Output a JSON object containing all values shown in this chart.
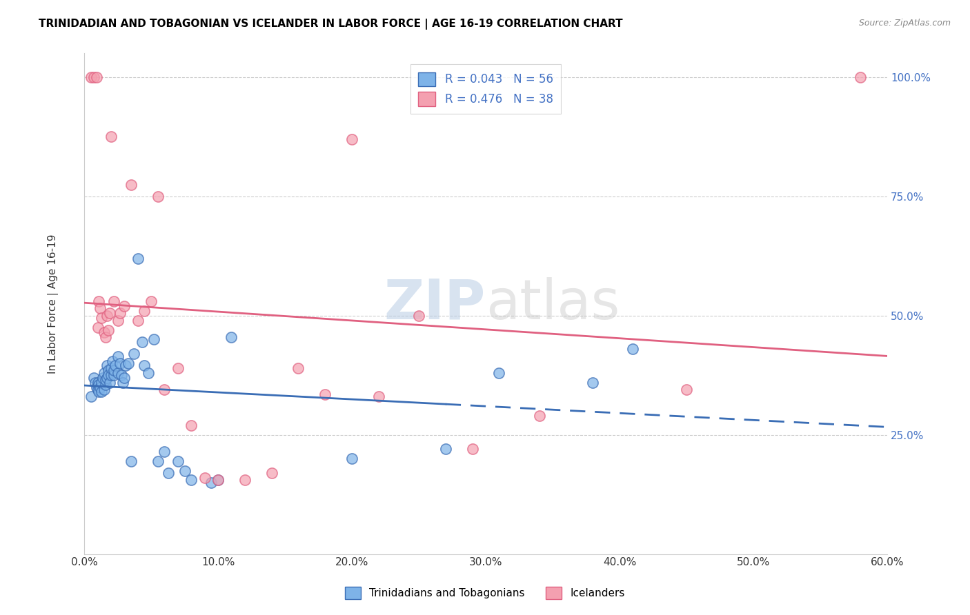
{
  "title": "TRINIDADIAN AND TOBAGONIAN VS ICELANDER IN LABOR FORCE | AGE 16-19 CORRELATION CHART",
  "source": "Source: ZipAtlas.com",
  "ylabel": "In Labor Force | Age 16-19",
  "xlim": [
    0.0,
    0.6
  ],
  "ylim": [
    0.0,
    1.05
  ],
  "xtick_labels": [
    "0.0%",
    "10.0%",
    "20.0%",
    "30.0%",
    "40.0%",
    "50.0%",
    "60.0%"
  ],
  "xtick_vals": [
    0.0,
    0.1,
    0.2,
    0.3,
    0.4,
    0.5,
    0.6
  ],
  "ytick_labels": [
    "25.0%",
    "50.0%",
    "75.0%",
    "100.0%"
  ],
  "ytick_vals": [
    0.25,
    0.5,
    0.75,
    1.0
  ],
  "blue_R": "0.043",
  "blue_N": "56",
  "pink_R": "0.476",
  "pink_N": "38",
  "blue_color": "#7EB3E8",
  "pink_color": "#F4A0B0",
  "blue_line_color": "#3A6DB5",
  "pink_line_color": "#E06080",
  "legend_label_blue": "Trinidadians and Tobagonians",
  "legend_label_pink": "Icelanders",
  "watermark_zip": "ZIP",
  "watermark_atlas": "atlas",
  "blue_line_split": 0.27,
  "blue_points_x": [
    0.005,
    0.007,
    0.008,
    0.009,
    0.01,
    0.01,
    0.011,
    0.011,
    0.012,
    0.013,
    0.013,
    0.014,
    0.015,
    0.015,
    0.016,
    0.016,
    0.017,
    0.017,
    0.018,
    0.018,
    0.019,
    0.02,
    0.02,
    0.021,
    0.022,
    0.022,
    0.023,
    0.025,
    0.025,
    0.027,
    0.028,
    0.029,
    0.03,
    0.031,
    0.033,
    0.035,
    0.037,
    0.04,
    0.043,
    0.045,
    0.048,
    0.052,
    0.055,
    0.06,
    0.063,
    0.07,
    0.075,
    0.08,
    0.095,
    0.1,
    0.11,
    0.2,
    0.27,
    0.31,
    0.38,
    0.41
  ],
  "blue_points_y": [
    0.33,
    0.37,
    0.36,
    0.35,
    0.345,
    0.36,
    0.355,
    0.34,
    0.35,
    0.34,
    0.36,
    0.37,
    0.38,
    0.345,
    0.355,
    0.365,
    0.37,
    0.395,
    0.385,
    0.375,
    0.36,
    0.375,
    0.39,
    0.405,
    0.375,
    0.385,
    0.395,
    0.38,
    0.415,
    0.4,
    0.375,
    0.36,
    0.37,
    0.395,
    0.4,
    0.195,
    0.42,
    0.62,
    0.445,
    0.395,
    0.38,
    0.45,
    0.195,
    0.215,
    0.17,
    0.195,
    0.175,
    0.155,
    0.15,
    0.155,
    0.455,
    0.2,
    0.22,
    0.38,
    0.36,
    0.43
  ],
  "pink_points_x": [
    0.005,
    0.007,
    0.009,
    0.01,
    0.011,
    0.012,
    0.013,
    0.015,
    0.016,
    0.017,
    0.018,
    0.019,
    0.02,
    0.022,
    0.025,
    0.027,
    0.03,
    0.035,
    0.04,
    0.045,
    0.05,
    0.055,
    0.06,
    0.07,
    0.08,
    0.09,
    0.1,
    0.12,
    0.14,
    0.16,
    0.18,
    0.2,
    0.22,
    0.25,
    0.29,
    0.34,
    0.45,
    0.58
  ],
  "pink_points_y": [
    1.0,
    1.0,
    1.0,
    0.475,
    0.53,
    0.515,
    0.495,
    0.465,
    0.455,
    0.5,
    0.47,
    0.505,
    0.875,
    0.53,
    0.49,
    0.505,
    0.52,
    0.775,
    0.49,
    0.51,
    0.53,
    0.75,
    0.345,
    0.39,
    0.27,
    0.16,
    0.155,
    0.155,
    0.17,
    0.39,
    0.335,
    0.87,
    0.33,
    0.5,
    0.22,
    0.29,
    0.345,
    1.0
  ]
}
